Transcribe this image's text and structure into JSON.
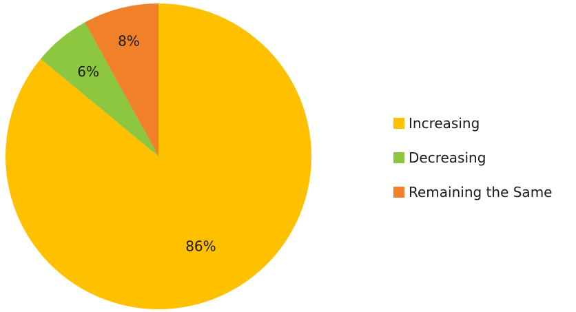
{
  "chart_data": {
    "type": "pie",
    "title": "",
    "categories": [
      "Increasing",
      "Decreasing",
      "Remaining the Same"
    ],
    "values": [
      86,
      6,
      8
    ],
    "data_labels": [
      "86%",
      "6%",
      "8%"
    ],
    "colors": [
      "#FFC000",
      "#8DC63F",
      "#F0812A"
    ],
    "legend_position": "right",
    "start": "12 o'clock",
    "direction": "clockwise"
  }
}
